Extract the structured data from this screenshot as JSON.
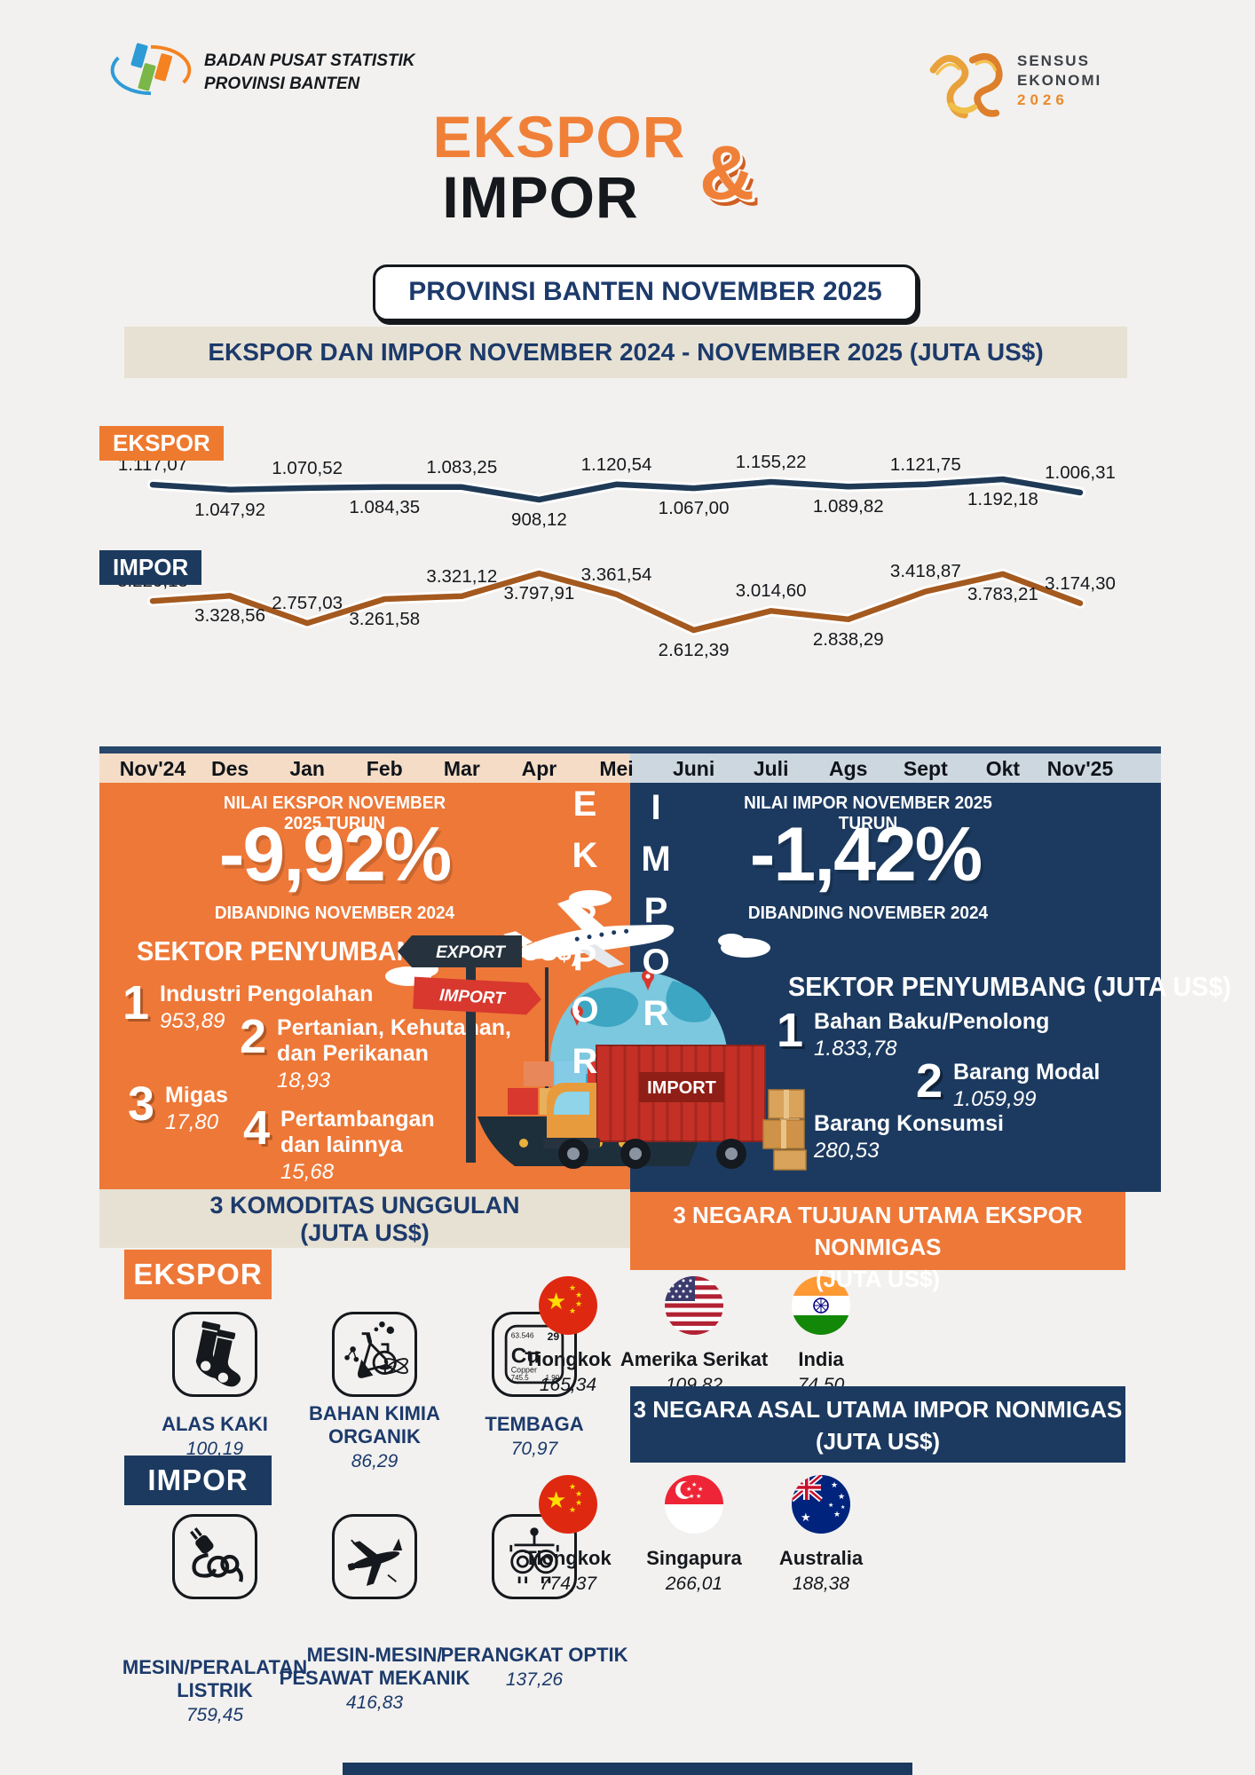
{
  "header": {
    "org_name_line1": "BADAN PUSAT STATISTIK",
    "org_name_line2": "PROVINSI BANTEN",
    "sensus_line1": "SENSUS",
    "sensus_line2": "EKONOMI",
    "sensus_year": "2026"
  },
  "title": {
    "word1": "EKSPOR",
    "word2": "IMPOR",
    "ampersand": "&",
    "badge": "PROVINSI BANTEN NOVEMBER 2025"
  },
  "chart_section": {
    "heading": "EKSPOR DAN IMPOR NOVEMBER 2024 - NOVEMBER 2025 (JUTA US$)",
    "ekspor_chip": "EKSPOR",
    "impor_chip": "IMPOR"
  },
  "chart_data": {
    "type": "line",
    "title": "EKSPOR DAN IMPOR NOVEMBER 2024 - NOVEMBER 2025 (JUTA US$)",
    "unit": "JUTA US$",
    "grid": false,
    "legend_position": "chip-left",
    "categories": [
      "Nov'24",
      "Des",
      "Jan",
      "Feb",
      "Mar",
      "Apr",
      "Mei",
      "Juni",
      "Juli",
      "Ags",
      "Sept",
      "Okt",
      "Nov'25"
    ],
    "series": [
      {
        "name": "EKSPOR",
        "color": "#1f3a56",
        "values": [
          1117.07,
          1047.92,
          1070.52,
          1084.35,
          1083.25,
          908.12,
          1120.54,
          1067.0,
          1155.22,
          1089.82,
          1121.75,
          1192.18,
          1006.31
        ],
        "labels": [
          "1.117,07",
          "1.047,92",
          "1.070,52",
          "1.084,35",
          "1.083,25",
          "908,12",
          "1.120,54",
          "1.067,00",
          "1.155,22",
          "1.089,82",
          "1.121,75",
          "1.192,18",
          "1.006,31"
        ]
      },
      {
        "name": "IMPOR",
        "color": "#a4591f",
        "values": [
          3220.15,
          3328.56,
          2757.03,
          3261.58,
          3321.12,
          3797.91,
          3361.54,
          2612.39,
          3014.6,
          2838.29,
          3418.87,
          3783.21,
          3174.3
        ],
        "labels": [
          "3.220,15",
          "3.328,56",
          "2.757,03",
          "3.261,58",
          "3.321,12",
          "3.797,91",
          "3.361,54",
          "2.612,39",
          "3.014,60",
          "2.838,29",
          "3.418,87",
          "3.783,21",
          "3.174,30"
        ]
      }
    ]
  },
  "ekspor_panel": {
    "vertical_label": "EKSPOR",
    "headline_top": "NILAI EKSPOR NOVEMBER 2025 TURUN",
    "percent": "-9,92%",
    "headline_bottom": "DIBANDING NOVEMBER 2024",
    "sector_heading": "SEKTOR PENYUMBANG (JUTA US$)",
    "sectors": [
      {
        "rank": "1",
        "name_line1": "Industri Pengolahan",
        "name_line2": "",
        "value": "953,89"
      },
      {
        "rank": "2",
        "name_line1": "Pertanian, Kehutanan,",
        "name_line2": "dan Perikanan",
        "value": "18,93"
      },
      {
        "rank": "3",
        "name_line1": "Migas",
        "name_line2": "",
        "value": "17,80"
      },
      {
        "rank": "4",
        "name_line1": "Pertambangan",
        "name_line2": "dan lainnya",
        "value": "15,68"
      }
    ]
  },
  "impor_panel": {
    "vertical_label": "IMPOR",
    "headline_top": "NILAI IMPOR NOVEMBER 2025 TURUN",
    "percent": "-1,42%",
    "headline_bottom": "DIBANDING NOVEMBER 2024",
    "sector_heading": "SEKTOR PENYUMBANG (JUTA US$)",
    "sectors": [
      {
        "rank": "1",
        "name_line1": "Bahan Baku/Penolong",
        "value": "1.833,78"
      },
      {
        "rank": "2",
        "name_line1": "Barang Modal",
        "value": "1.059,99"
      },
      {
        "rank": "3",
        "name_line1": "Barang Konsumsi",
        "value": "280,53"
      }
    ]
  },
  "illustration": {
    "export_sign": "EXPORT",
    "import_sign": "IMPORT",
    "truck_container_label": "IMPORT"
  },
  "komoditas": {
    "heading_line1": "3 KOMODITAS UNGGULAN",
    "heading_line2": "(JUTA US$)",
    "ekspor_badge": "EKSPOR",
    "impor_badge": "IMPOR",
    "ekspor_items": [
      {
        "name_line1": "ALAS KAKI",
        "name_line2": "",
        "value": "100,19"
      },
      {
        "name_line1": "BAHAN KIMIA",
        "name_line2": "ORGANIK",
        "value": "86,29"
      },
      {
        "name_line1": "TEMBAGA",
        "name_line2": "",
        "value": "70,97"
      }
    ],
    "impor_items": [
      {
        "name_line1": "MESIN/PERALATAN",
        "name_line2": "LISTRIK",
        "value": "759,45"
      },
      {
        "name_line1": "MESIN-MESIN/",
        "name_line2": "PESAWAT MEKANIK",
        "value": "416,83"
      },
      {
        "name_line1": "PERANGKAT OPTIK",
        "name_line2": "",
        "value": "137,26"
      }
    ],
    "copper_element": {
      "mass": "63.546",
      "number": "29",
      "symbol": "Cu",
      "name": "Copper",
      "detail1": "745.5",
      "detail2": "1.90"
    }
  },
  "negara": {
    "ekspor_heading_line1": "3 NEGARA TUJUAN UTAMA EKSPOR NONMIGAS",
    "ekspor_heading_line2": "(JUTA US$)",
    "impor_heading_line1": "3 NEGARA ASAL UTAMA IMPOR NONMIGAS",
    "impor_heading_line2": "(JUTA US$)",
    "ekspor_countries": [
      {
        "name": "Tiongkok",
        "value": "165,34"
      },
      {
        "name": "Amerika Serikat",
        "value": "109,82"
      },
      {
        "name": "India",
        "value": "74,50"
      }
    ],
    "impor_countries": [
      {
        "name": "Tiongkok",
        "value": "774,37"
      },
      {
        "name": "Singapura",
        "value": "266,01"
      },
      {
        "name": "Australia",
        "value": "188,38"
      }
    ]
  },
  "colors": {
    "orange": "#ee7838",
    "navy": "#1c3a60",
    "beige": "#e6e1d3",
    "background": "#f2f1ef",
    "ekspor_line": "#1f3a56",
    "impor_line": "#a4591f"
  }
}
